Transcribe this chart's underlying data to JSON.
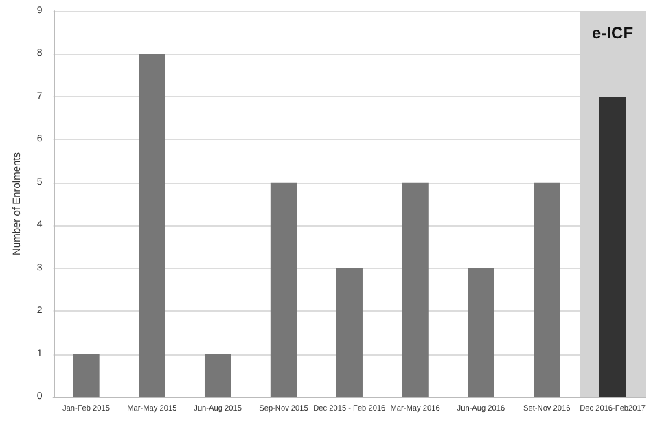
{
  "chart_data": {
    "type": "bar",
    "ylabel": "Number of Enrolments",
    "categories": [
      "Jan-Feb 2015",
      "Mar-May 2015",
      "Jun-Aug 2015",
      "Sep-Nov 2015",
      "Dec 2015 - Feb 2016",
      "Mar-May 2016",
      "Jun-Aug 2016",
      "Set-Nov 2016",
      "Dec 2016-Feb2017"
    ],
    "values": [
      1,
      8,
      1,
      5,
      3,
      5,
      3,
      5,
      7
    ],
    "colors": [
      "#777777",
      "#777777",
      "#777777",
      "#777777",
      "#777777",
      "#777777",
      "#777777",
      "#777777",
      "#333333"
    ],
    "ylim": [
      0,
      9
    ],
    "yticks": [
      0,
      1,
      2,
      3,
      4,
      5,
      6,
      7,
      8,
      9
    ],
    "grid": "y",
    "bands": [
      {
        "axis": "x",
        "from": "Dec 2016-Feb2017",
        "to": "Dec 2016-Feb2017",
        "label": "e-ICF",
        "color": "#d3d3d3"
      }
    ]
  }
}
